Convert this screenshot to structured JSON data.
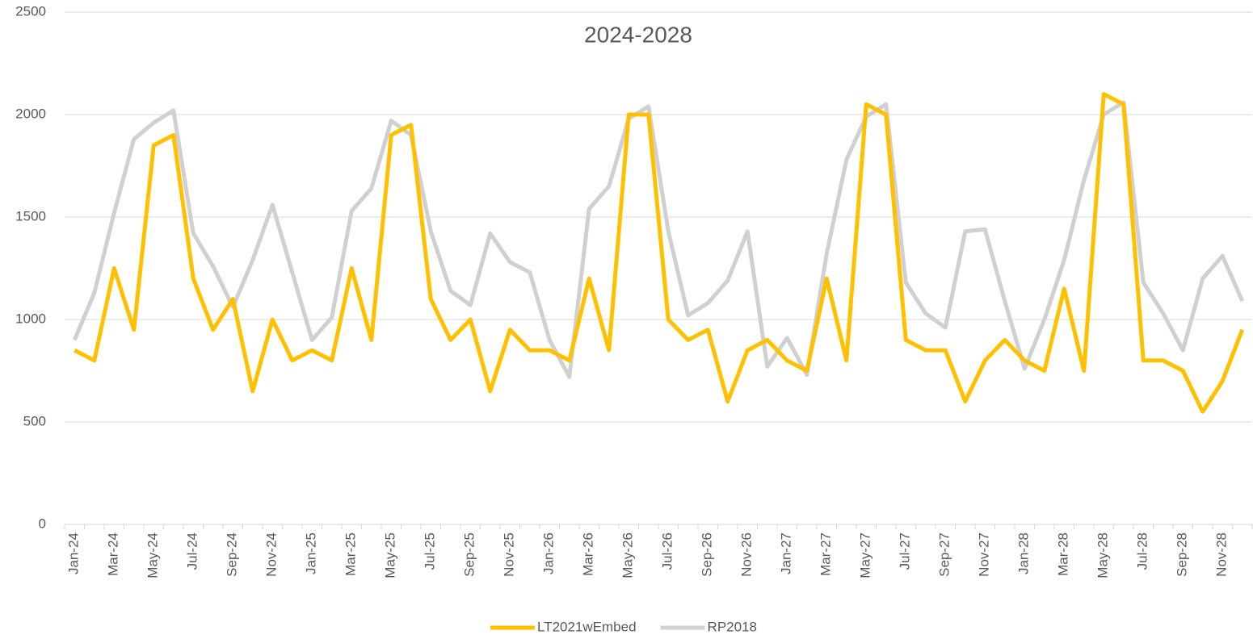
{
  "chart_data": {
    "type": "line",
    "title": "2024-2028",
    "categories": [
      "Jan-24",
      null,
      "Mar-24",
      null,
      "May-24",
      null,
      "Jul-24",
      null,
      "Sep-24",
      null,
      "Nov-24",
      null,
      "Jan-25",
      null,
      "Mar-25",
      null,
      "May-25",
      null,
      "Jul-25",
      null,
      "Sep-25",
      null,
      "Nov-25",
      null,
      "Jan-26",
      null,
      "Mar-26",
      null,
      "May-26",
      null,
      "Jul-26",
      null,
      "Sep-26",
      null,
      "Nov-26",
      null,
      "Jan-27",
      null,
      "Mar-27",
      null,
      "May-27",
      null,
      "Jul-27",
      null,
      "Sep-27",
      null,
      "Nov-27",
      null,
      "Jan-28",
      null,
      "Mar-28",
      null,
      "May-28",
      null,
      "Jul-28",
      null,
      "Sep-28",
      null,
      "Nov-28",
      null
    ],
    "series": [
      {
        "name": "LT2021wEmbed",
        "color": "#ffc000",
        "values": [
          850,
          800,
          1250,
          950,
          1850,
          1900,
          1200,
          950,
          1100,
          650,
          1000,
          800,
          850,
          800,
          1250,
          900,
          1900,
          1950,
          1100,
          900,
          1000,
          650,
          950,
          850,
          850,
          800,
          1200,
          850,
          2000,
          2000,
          1000,
          900,
          950,
          600,
          850,
          900,
          800,
          750,
          1200,
          800,
          2050,
          2000,
          900,
          850,
          850,
          600,
          800,
          900,
          800,
          750,
          1150,
          750,
          2100,
          2050,
          800,
          800,
          750,
          550,
          700,
          950
        ]
      },
      {
        "name": "RP2018",
        "color": "#d0d0d0",
        "values": [
          900,
          1130,
          1520,
          1880,
          1960,
          2020,
          1420,
          1260,
          1060,
          1290,
          1560,
          1230,
          900,
          1010,
          1530,
          1640,
          1970,
          1900,
          1430,
          1140,
          1070,
          1420,
          1280,
          1230,
          900,
          720,
          1540,
          1650,
          1980,
          2040,
          1430,
          1020,
          1080,
          1190,
          1430,
          770,
          910,
          730,
          1320,
          1780,
          1990,
          2050,
          1180,
          1030,
          960,
          1430,
          1440,
          1090,
          760,
          1000,
          1290,
          1680,
          2000,
          2060,
          1180,
          1030,
          850,
          1200,
          1310,
          1090
        ]
      }
    ],
    "ylim": [
      0,
      2500
    ],
    "yticks": [
      0,
      500,
      1000,
      1500,
      2000,
      2500
    ],
    "grid": true
  }
}
